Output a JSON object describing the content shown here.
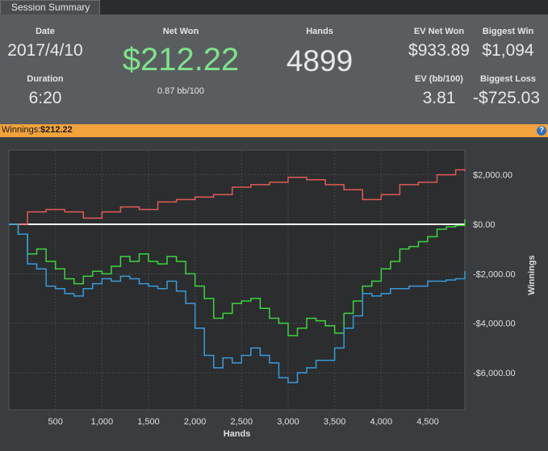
{
  "tab": {
    "label": "Session Summary"
  },
  "summary": {
    "date_label": "Date",
    "date_value": "2017/4/10",
    "duration_label": "Duration",
    "duration_value": "6:20",
    "netwon_label": "Net Won",
    "netwon_value": "$212.22",
    "netwon_sub": "0.87 bb/100",
    "hands_label": "Hands",
    "hands_value": "4899",
    "evnetwon_label": "EV Net Won",
    "evnetwon_value": "$933.89",
    "biggestwin_label": "Biggest Win",
    "biggestwin_value": "$1,094",
    "ev_label": "EV (bb/100)",
    "ev_value": "3.81",
    "biggestloss_label": "Biggest Loss",
    "biggestloss_value": "-$725.03"
  },
  "winnings_bar": {
    "label": "Winnings:",
    "value": "$212.22",
    "help": "?"
  },
  "colors": {
    "net_won": "#7ee38a",
    "bar": "#f2a33c",
    "red_series": "#e05a55",
    "green_series": "#3ed43e",
    "blue_series": "#3a9ad9"
  },
  "chart_data": {
    "type": "line",
    "xlabel": "Hands",
    "ylabel": "Winnings",
    "xlim": [
      0,
      4899
    ],
    "ylim": [
      -7500,
      3000
    ],
    "xticks": [
      500,
      1000,
      1500,
      2000,
      2500,
      3000,
      3500,
      4000,
      4500
    ],
    "xtick_labels": [
      "500",
      "1,000",
      "1,500",
      "2,000",
      "2,500",
      "3,000",
      "3,500",
      "4,000",
      "4,500"
    ],
    "yticks": [
      2000,
      0,
      -2000,
      -4000,
      -6000
    ],
    "ytick_labels": [
      "$2,000.00",
      "$0.00",
      "-$2,000.00",
      "-$4,000.00",
      "-$6,000.00"
    ],
    "grid": true,
    "series": [
      {
        "color": "#e05a55",
        "x": [
          0,
          200,
          400,
          600,
          800,
          1000,
          1200,
          1400,
          1600,
          1800,
          2000,
          2200,
          2400,
          2600,
          2800,
          3000,
          3200,
          3400,
          3600,
          3800,
          4000,
          4200,
          4400,
          4600,
          4800,
          4899
        ],
        "y": [
          0,
          500,
          600,
          500,
          250,
          500,
          700,
          600,
          900,
          1000,
          1100,
          1200,
          1500,
          1600,
          1700,
          1900,
          1800,
          1600,
          1400,
          1000,
          1200,
          1600,
          1700,
          2000,
          2200,
          2150
        ]
      },
      {
        "color": "#3ed43e",
        "x": [
          0,
          100,
          200,
          300,
          400,
          500,
          600,
          700,
          800,
          900,
          1000,
          1100,
          1200,
          1300,
          1400,
          1500,
          1600,
          1700,
          1800,
          1900,
          2000,
          2100,
          2200,
          2300,
          2400,
          2500,
          2600,
          2700,
          2800,
          2900,
          3000,
          3100,
          3200,
          3300,
          3400,
          3500,
          3600,
          3700,
          3800,
          3900,
          4000,
          4100,
          4200,
          4300,
          4400,
          4500,
          4600,
          4700,
          4800,
          4899
        ],
        "y": [
          0,
          -400,
          -1200,
          -1000,
          -1500,
          -1800,
          -2200,
          -2400,
          -2100,
          -1900,
          -2000,
          -1700,
          -1300,
          -1500,
          -1200,
          -1500,
          -1600,
          -1300,
          -1500,
          -2000,
          -2500,
          -3000,
          -3800,
          -3600,
          -3200,
          -3100,
          -3000,
          -3400,
          -3800,
          -4000,
          -4500,
          -4200,
          -3800,
          -3900,
          -4100,
          -4400,
          -3600,
          -3100,
          -2500,
          -2300,
          -1800,
          -1500,
          -1000,
          -900,
          -700,
          -500,
          -200,
          -100,
          -50,
          200
        ]
      },
      {
        "color": "#3a9ad9",
        "x": [
          0,
          100,
          200,
          300,
          400,
          500,
          600,
          700,
          800,
          900,
          1000,
          1100,
          1200,
          1300,
          1400,
          1500,
          1600,
          1700,
          1800,
          1900,
          2000,
          2100,
          2200,
          2300,
          2400,
          2500,
          2600,
          2700,
          2800,
          2900,
          3000,
          3100,
          3200,
          3300,
          3400,
          3500,
          3600,
          3700,
          3800,
          3900,
          4000,
          4100,
          4200,
          4300,
          4400,
          4500,
          4600,
          4700,
          4800,
          4899
        ],
        "y": [
          0,
          -400,
          -1600,
          -1800,
          -2500,
          -2600,
          -2800,
          -2900,
          -2600,
          -2400,
          -2200,
          -2300,
          -2100,
          -2200,
          -2400,
          -2500,
          -2600,
          -2300,
          -2700,
          -3200,
          -4200,
          -5300,
          -5800,
          -5400,
          -5600,
          -5300,
          -5000,
          -5300,
          -5600,
          -6200,
          -6400,
          -6000,
          -5800,
          -5500,
          -5500,
          -5000,
          -4200,
          -3700,
          -2800,
          -2900,
          -2800,
          -2600,
          -2600,
          -2500,
          -2500,
          -2300,
          -2300,
          -2250,
          -2200,
          -1900
        ]
      }
    ]
  }
}
